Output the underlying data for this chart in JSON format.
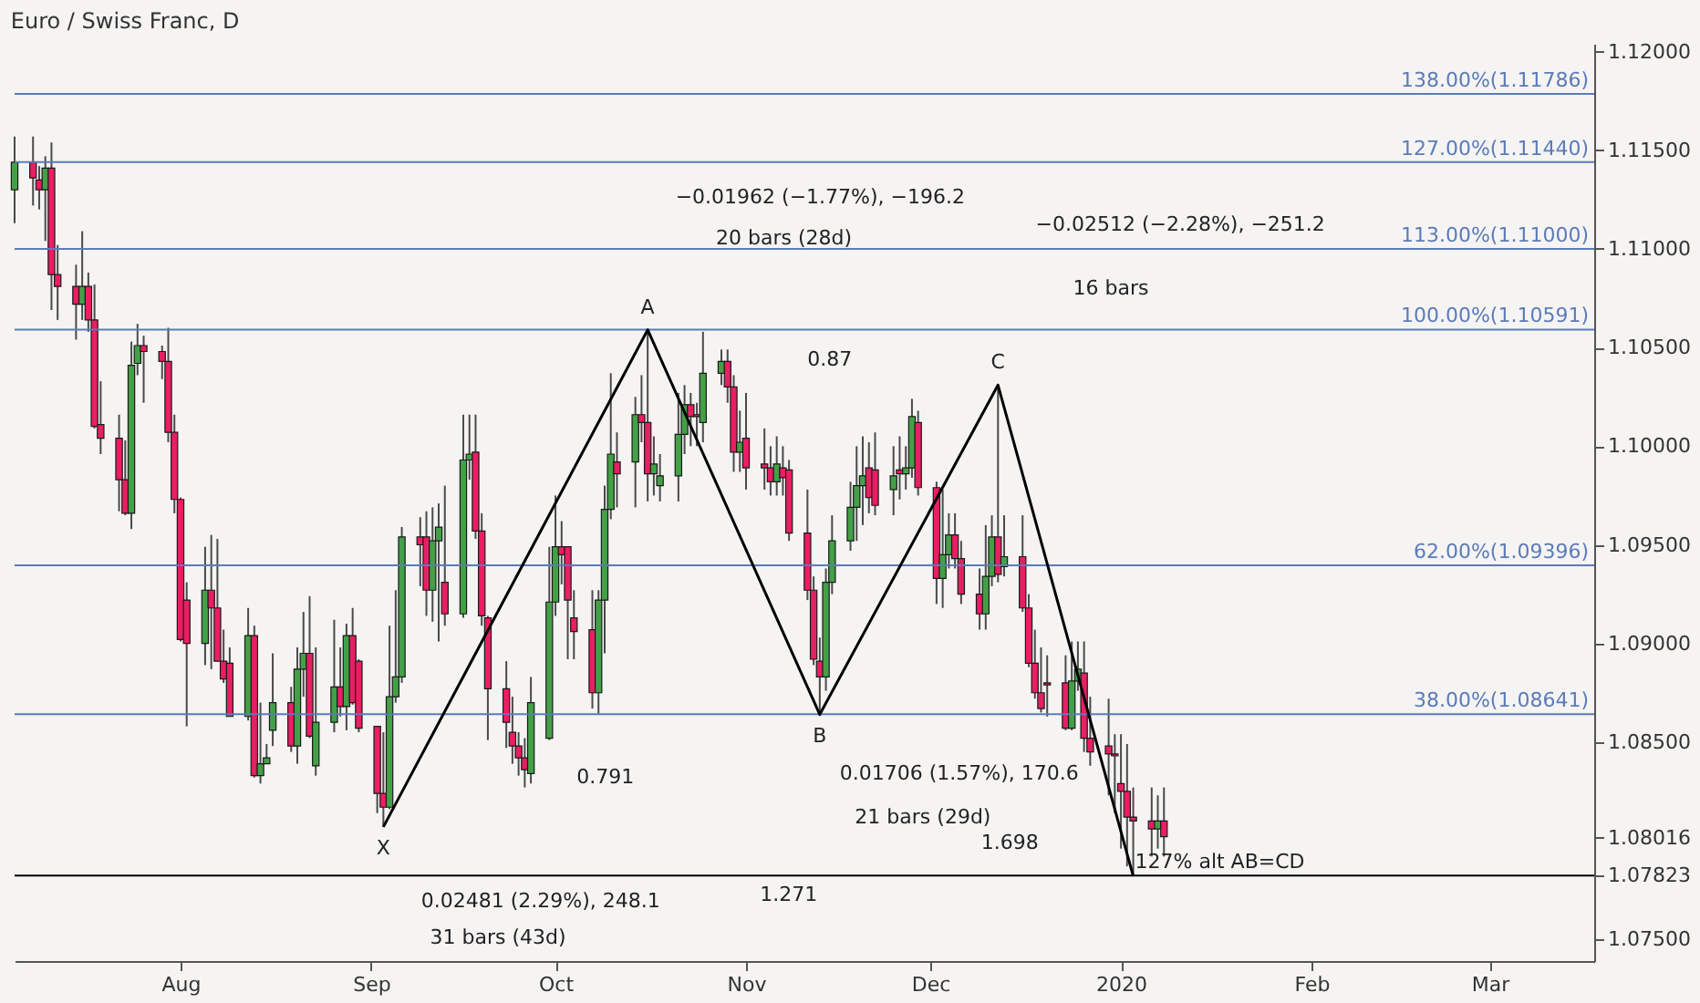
{
  "chart_data": {
    "type": "candlestick",
    "title": "Euro / Swiss Franc, D",
    "x": [
      "2019-07-05",
      "2019-07-08",
      "2019-07-09",
      "2019-07-10",
      "2019-07-11",
      "2019-07-12",
      "2019-07-15",
      "2019-07-16",
      "2019-07-17",
      "2019-07-18",
      "2019-07-19",
      "2019-07-22",
      "2019-07-23",
      "2019-07-24",
      "2019-07-25",
      "2019-07-26",
      "2019-07-29",
      "2019-07-30",
      "2019-07-31",
      "2019-08-01",
      "2019-08-02",
      "2019-08-05",
      "2019-08-06",
      "2019-08-07",
      "2019-08-08",
      "2019-08-09",
      "2019-08-12",
      "2019-08-13",
      "2019-08-14",
      "2019-08-15",
      "2019-08-16",
      "2019-08-19",
      "2019-08-20",
      "2019-08-21",
      "2019-08-22",
      "2019-08-23",
      "2019-08-26",
      "2019-08-27",
      "2019-08-28",
      "2019-08-29",
      "2019-08-30",
      "2019-09-02",
      "2019-09-03",
      "2019-09-04",
      "2019-09-05",
      "2019-09-06",
      "2019-09-09",
      "2019-09-10",
      "2019-09-11",
      "2019-09-12",
      "2019-09-13",
      "2019-09-16",
      "2019-09-17",
      "2019-09-18",
      "2019-09-19",
      "2019-09-20",
      "2019-09-23",
      "2019-09-24",
      "2019-09-25",
      "2019-09-26",
      "2019-09-27",
      "2019-09-30",
      "2019-10-01",
      "2019-10-02",
      "2019-10-03",
      "2019-10-04",
      "2019-10-07",
      "2019-10-08",
      "2019-10-09",
      "2019-10-10",
      "2019-10-11",
      "2019-10-14",
      "2019-10-15",
      "2019-10-16",
      "2019-10-17",
      "2019-10-18",
      "2019-10-21",
      "2019-10-22",
      "2019-10-23",
      "2019-10-24",
      "2019-10-25",
      "2019-10-28",
      "2019-10-29",
      "2019-10-30",
      "2019-10-31",
      "2019-11-01",
      "2019-11-04",
      "2019-11-05",
      "2019-11-06",
      "2019-11-07",
      "2019-11-08",
      "2019-11-11",
      "2019-11-12",
      "2019-11-13",
      "2019-11-14",
      "2019-11-15",
      "2019-11-18",
      "2019-11-19",
      "2019-11-20",
      "2019-11-21",
      "2019-11-22",
      "2019-11-25",
      "2019-11-26",
      "2019-11-27",
      "2019-11-28",
      "2019-11-29",
      "2019-12-02",
      "2019-12-03",
      "2019-12-04",
      "2019-12-05",
      "2019-12-06",
      "2019-12-09",
      "2019-12-10",
      "2019-12-11",
      "2019-12-12",
      "2019-12-13",
      "2019-12-16",
      "2019-12-17",
      "2019-12-18",
      "2019-12-19",
      "2019-12-20",
      "2019-12-23",
      "2019-12-24",
      "2019-12-25",
      "2019-12-26",
      "2019-12-27",
      "2019-12-30",
      "2019-12-31",
      "2020-01-01",
      "2020-01-02",
      "2020-01-03",
      "2020-01-06",
      "2020-01-07",
      "2020-01-08"
    ],
    "ohlc": [
      [
        1.113,
        1.1157,
        1.1113,
        1.1144
      ],
      [
        1.1144,
        1.1157,
        1.1122,
        1.1136
      ],
      [
        1.1135,
        1.1142,
        1.112,
        1.113
      ],
      [
        1.113,
        1.1147,
        1.1104,
        1.1141
      ],
      [
        1.1141,
        1.1154,
        1.1069,
        1.1087
      ],
      [
        1.1087,
        1.1102,
        1.1064,
        1.1081
      ],
      [
        1.1081,
        1.1092,
        1.1054,
        1.1072
      ],
      [
        1.1072,
        1.1109,
        1.1064,
        1.1081
      ],
      [
        1.1081,
        1.1088,
        1.1058,
        1.1064
      ],
      [
        1.1064,
        1.1082,
        1.1009,
        1.101
      ],
      [
        1.1011,
        1.1033,
        1.0996,
        1.1004
      ],
      [
        1.1004,
        1.1016,
        1.0967,
        1.0983
      ],
      [
        1.0983,
        1.1003,
        1.0965,
        1.0966
      ],
      [
        1.0966,
        1.1053,
        1.0958,
        1.1041
      ],
      [
        1.1042,
        1.1062,
        1.1036,
        1.1051
      ],
      [
        1.1051,
        1.1056,
        1.1022,
        1.1048
      ],
      [
        1.1048,
        1.1051,
        1.1034,
        1.1043
      ],
      [
        1.1043,
        1.106,
        1.1002,
        1.1007
      ],
      [
        1.1007,
        1.1016,
        1.0966,
        1.0973
      ],
      [
        1.0973,
        1.0974,
        1.0901,
        1.0902
      ],
      [
        1.0922,
        1.0931,
        1.0858,
        1.09
      ],
      [
        1.09,
        1.0949,
        1.0889,
        1.0927
      ],
      [
        1.0927,
        1.0955,
        1.0887,
        1.0918
      ],
      [
        1.0918,
        1.0953,
        1.0891,
        1.0891
      ],
      [
        1.0891,
        1.0907,
        1.088,
        1.0882
      ],
      [
        1.089,
        1.0898,
        1.0863,
        1.0863
      ],
      [
        1.0863,
        1.0918,
        1.0861,
        1.0904
      ],
      [
        1.0904,
        1.0909,
        1.0832,
        1.0833
      ],
      [
        1.0833,
        1.087,
        1.0829,
        1.0839
      ],
      [
        1.0839,
        1.0849,
        1.0839,
        1.0842
      ],
      [
        1.0856,
        1.0895,
        1.0848,
        1.087
      ],
      [
        1.087,
        1.0878,
        1.0845,
        1.0848
      ],
      [
        1.0848,
        1.0898,
        1.0839,
        1.0887
      ],
      [
        1.0887,
        1.0916,
        1.0873,
        1.0895
      ],
      [
        1.0895,
        1.0924,
        1.0852,
        1.0853
      ],
      [
        1.0838,
        1.0898,
        1.0833,
        1.086
      ],
      [
        1.086,
        1.0912,
        1.0855,
        1.0878
      ],
      [
        1.0878,
        1.0898,
        1.0863,
        1.0868
      ],
      [
        1.0868,
        1.091,
        1.0856,
        1.0904
      ],
      [
        1.0904,
        1.0918,
        1.0869,
        1.087
      ],
      [
        1.0891,
        1.0892,
        1.0855,
        1.0857
      ],
      [
        1.0858,
        1.0858,
        1.0814,
        1.0824
      ],
      [
        1.0824,
        1.0855,
        1.0807,
        1.0817
      ],
      [
        1.0817,
        1.0909,
        1.0816,
        1.0873
      ],
      [
        1.0873,
        1.0927,
        1.087,
        1.0883
      ],
      [
        1.0883,
        1.0959,
        1.088,
        1.0954
      ],
      [
        1.0954,
        1.0964,
        1.0929,
        1.095
      ],
      [
        1.0954,
        1.0967,
        1.0914,
        1.0927
      ],
      [
        1.0927,
        1.0969,
        1.0911,
        1.0952
      ],
      [
        1.0952,
        1.0971,
        1.0901,
        1.0959
      ],
      [
        1.0931,
        1.098,
        1.0909,
        1.0915
      ],
      [
        1.0915,
        1.1016,
        1.0913,
        1.0993
      ],
      [
        1.0993,
        1.1016,
        1.0983,
        1.0996
      ],
      [
        1.0997,
        1.1016,
        1.0953,
        1.0957
      ],
      [
        1.0957,
        1.0966,
        1.0909,
        1.0914
      ],
      [
        1.0913,
        1.0914,
        1.0851,
        1.0877
      ],
      [
        1.0877,
        1.0891,
        1.0847,
        1.086
      ],
      [
        1.0855,
        1.0873,
        1.0839,
        1.0848
      ],
      [
        1.0848,
        1.0855,
        1.0833,
        1.0842
      ],
      [
        1.0842,
        1.0852,
        1.0827,
        1.0836
      ],
      [
        1.0834,
        1.0883,
        1.0829,
        1.087
      ],
      [
        1.0852,
        1.0949,
        1.0851,
        1.0921
      ],
      [
        1.0921,
        1.0975,
        1.0914,
        1.0949
      ],
      [
        1.0949,
        1.0962,
        1.093,
        1.0945
      ],
      [
        1.0949,
        1.0949,
        1.0892,
        1.0922
      ],
      [
        1.0913,
        1.0927,
        1.0892,
        1.0906
      ],
      [
        1.0907,
        1.0927,
        1.0867,
        1.0875
      ],
      [
        1.0875,
        1.0927,
        1.0864,
        1.0922
      ],
      [
        1.0922,
        1.098,
        1.0895,
        1.0968
      ],
      [
        1.0968,
        1.1037,
        1.0963,
        1.0996
      ],
      [
        1.0992,
        1.1007,
        1.0969,
        1.0986
      ],
      [
        1.0992,
        1.1025,
        1.0969,
        1.1016
      ],
      [
        1.1016,
        1.1036,
        1.1002,
        1.1012
      ],
      [
        1.1012,
        1.1059,
        1.0972,
        1.0986
      ],
      [
        1.0986,
        1.1005,
        1.0975,
        1.0991
      ],
      [
        1.098,
        1.0996,
        1.0972,
        1.0985
      ],
      [
        1.0985,
        1.1027,
        1.0972,
        1.1006
      ],
      [
        1.1006,
        1.1031,
        1.0996,
        1.1021
      ],
      [
        1.1021,
        1.1027,
        1.1,
        1.1015
      ],
      [
        1.1016,
        1.1022,
        1.1,
        1.1015
      ],
      [
        1.1012,
        1.1058,
        1.1002,
        1.1037
      ],
      [
        1.1037,
        1.1049,
        1.1031,
        1.1043
      ],
      [
        1.1043,
        1.1049,
        1.1022,
        1.103
      ],
      [
        1.103,
        1.1036,
        1.0987,
        1.0997
      ],
      [
        1.0997,
        1.1018,
        1.0987,
        1.1002
      ],
      [
        1.1004,
        1.1027,
        1.0978,
        1.0989
      ],
      [
        1.0991,
        1.1009,
        1.0978,
        1.0989
      ],
      [
        1.0989,
        1.1,
        1.0975,
        1.0982
      ],
      [
        1.0982,
        1.1005,
        1.0975,
        1.0991
      ],
      [
        1.0989,
        1.1,
        1.0975,
        1.0984
      ],
      [
        1.0988,
        1.0993,
        1.0952,
        1.0956
      ],
      [
        1.0956,
        1.0978,
        1.0922,
        1.0927
      ],
      [
        1.0927,
        1.0934,
        1.0889,
        1.0892
      ],
      [
        1.0891,
        1.0903,
        1.0864,
        1.0883
      ],
      [
        1.0883,
        1.0938,
        1.0876,
        1.0931
      ],
      [
        1.0931,
        1.0965,
        1.0925,
        1.0952
      ],
      [
        1.0952,
        1.0982,
        1.0947,
        1.0969
      ],
      [
        1.0969,
        1.1,
        1.0952,
        1.098
      ],
      [
        1.098,
        1.1005,
        1.096,
        1.0985
      ],
      [
        1.0989,
        1.1002,
        1.0966,
        1.0974
      ],
      [
        1.0988,
        1.1007,
        1.0965,
        1.097
      ],
      [
        1.0978,
        1.1,
        1.0965,
        1.0985
      ],
      [
        1.0988,
        1.1005,
        1.0973,
        1.0986
      ],
      [
        1.0986,
        1.1,
        1.0978,
        1.0989
      ],
      [
        1.0989,
        1.1024,
        1.0984,
        1.1015
      ],
      [
        1.1012,
        1.1018,
        1.0975,
        1.0979
      ],
      [
        1.0979,
        1.0982,
        1.092,
        1.0933
      ],
      [
        1.0933,
        1.0978,
        1.0918,
        1.0945
      ],
      [
        1.0945,
        1.0966,
        1.0938,
        1.0955
      ],
      [
        1.0955,
        1.0966,
        1.0938,
        1.0943
      ],
      [
        1.0943,
        1.0952,
        1.092,
        1.0925
      ],
      [
        1.0925,
        1.0938,
        1.0907,
        1.0915
      ],
      [
        1.0915,
        1.096,
        1.0907,
        1.0934
      ],
      [
        1.0934,
        1.0965,
        1.0929,
        1.0954
      ],
      [
        1.0954,
        1.1031,
        1.0931,
        1.0935
      ],
      [
        1.0939,
        1.0965,
        1.0934,
        1.0944
      ],
      [
        1.0944,
        1.0965,
        1.0916,
        1.0918
      ],
      [
        1.0918,
        1.0925,
        1.0888,
        1.089
      ],
      [
        1.089,
        1.0907,
        1.0872,
        1.0875
      ],
      [
        1.0875,
        1.0898,
        1.0865,
        1.0867
      ],
      [
        1.088,
        1.0894,
        1.0863,
        1.0879
      ],
      [
        1.088,
        1.0894,
        1.0856,
        1.0857
      ],
      [
        1.0857,
        1.0901,
        1.0856,
        1.0881
      ],
      [
        1.0881,
        1.0901,
        1.0876,
        1.0887
      ],
      [
        1.0885,
        1.0901,
        1.0845,
        1.0852
      ],
      [
        1.0852,
        1.0873,
        1.0838,
        1.0845
      ],
      [
        1.0848,
        1.0872,
        1.0823,
        1.0844
      ],
      [
        1.0844,
        1.0854,
        1.0814,
        1.0843
      ],
      [
        1.0829,
        1.0854,
        1.0796,
        1.0825
      ],
      [
        1.0825,
        1.0849,
        1.0787,
        1.0812
      ],
      [
        1.0812,
        1.0827,
        1.0783,
        1.081
      ],
      [
        1.081,
        1.0827,
        1.0792,
        1.0806
      ],
      [
        1.0806,
        1.0823,
        1.0796,
        1.081
      ],
      [
        1.081,
        1.0827,
        1.0792,
        1.0802
      ]
    ],
    "colors": [
      "#43a047",
      "#e91e63",
      "#e91e63",
      "#43a047",
      "#e91e63",
      "#e91e63",
      "#e91e63",
      "#43a047",
      "#e91e63",
      "#e91e63",
      "#e91e63",
      "#e91e63",
      "#e91e63",
      "#43a047",
      "#43a047",
      "#e91e63",
      "#e91e63",
      "#e91e63",
      "#e91e63",
      "#e91e63",
      "#e91e63",
      "#43a047",
      "#e91e63",
      "#e91e63",
      "#e91e63",
      "#e91e63",
      "#43a047",
      "#e91e63",
      "#43a047",
      "#43a047",
      "#43a047",
      "#e91e63",
      "#43a047",
      "#43a047",
      "#e91e63",
      "#43a047",
      "#43a047",
      "#e91e63",
      "#43a047",
      "#e91e63",
      "#e91e63",
      "#e91e63",
      "#e91e63",
      "#43a047",
      "#43a047",
      "#43a047",
      "#e91e63",
      "#e91e63",
      "#43a047",
      "#43a047",
      "#e91e63",
      "#43a047",
      "#43a047",
      "#e91e63",
      "#e91e63",
      "#e91e63",
      "#e91e63",
      "#e91e63",
      "#e91e63",
      "#e91e63",
      "#43a047",
      "#43a047",
      "#43a047",
      "#e91e63",
      "#e91e63",
      "#e91e63",
      "#e91e63",
      "#43a047",
      "#43a047",
      "#43a047",
      "#e91e63",
      "#43a047",
      "#e91e63",
      "#e91e63",
      "#43a047",
      "#43a047",
      "#43a047",
      "#43a047",
      "#e91e63",
      "#e91e63",
      "#43a047",
      "#43a047",
      "#e91e63",
      "#e91e63",
      "#43a047",
      "#e91e63",
      "#e91e63",
      "#e91e63",
      "#43a047",
      "#e91e63",
      "#e91e63",
      "#e91e63",
      "#e91e63",
      "#e91e63",
      "#43a047",
      "#43a047",
      "#43a047",
      "#43a047",
      "#43a047",
      "#e91e63",
      "#e91e63",
      "#43a047",
      "#e91e63",
      "#43a047",
      "#43a047",
      "#e91e63",
      "#e91e63",
      "#43a047",
      "#43a047",
      "#e91e63",
      "#e91e63",
      "#e91e63",
      "#43a047",
      "#43a047",
      "#e91e63",
      "#43a047",
      "#e91e63",
      "#e91e63",
      "#e91e63",
      "#e91e63",
      "#e91e63",
      "#e91e63",
      "#43a047",
      "#43a047",
      "#e91e63",
      "#e91e63",
      "#e91e63",
      "#e91e63",
      "#e91e63",
      "#e91e63",
      "#e91e63",
      "#e91e63",
      "#43a047",
      "#e91e63"
    ],
    "xlim": [
      "2019-07-05",
      "2020-03-18"
    ],
    "xticks": [
      {
        "value": "2019-08-01",
        "label": "Aug"
      },
      {
        "value": "2019-09-01",
        "label": "Sep"
      },
      {
        "value": "2019-10-01",
        "label": "Oct"
      },
      {
        "value": "2019-11-01",
        "label": "Nov"
      },
      {
        "value": "2019-12-01",
        "label": "Dec"
      },
      {
        "value": "2020-01-01",
        "label": "2020"
      },
      {
        "value": "2020-02-01",
        "label": "Feb"
      },
      {
        "value": "2020-03-01",
        "label": "Mar"
      }
    ],
    "ylim": [
      1.0739,
      1.1204
    ],
    "yticks": [
      {
        "value": 1.075,
        "label": "1.07500"
      },
      {
        "value": 1.07823,
        "label": "1.07823"
      },
      {
        "value": 1.08016,
        "label": "1.08016"
      },
      {
        "value": 1.085,
        "label": "1.08500"
      },
      {
        "value": 1.09,
        "label": "1.09000"
      },
      {
        "value": 1.095,
        "label": "1.09500"
      },
      {
        "value": 1.1,
        "label": "1.10000"
      },
      {
        "value": 1.105,
        "label": "1.10500"
      },
      {
        "value": 1.11,
        "label": "1.11000"
      },
      {
        "value": 1.115,
        "label": "1.11500"
      },
      {
        "value": 1.12,
        "label": "1.12000"
      }
    ],
    "ref_lines": [
      {
        "axis": "y",
        "value": 1.11786,
        "label": "138.00%(1.11786)",
        "color": "#5b7bb8"
      },
      {
        "axis": "y",
        "value": 1.1144,
        "label": "127.00%(1.11440)",
        "color": "#5b7bb8"
      },
      {
        "axis": "y",
        "value": 1.11,
        "label": "113.00%(1.11000)",
        "color": "#5b7bb8"
      },
      {
        "axis": "y",
        "value": 1.10591,
        "label": "100.00%(1.10591)",
        "color": "#5b7bb8"
      },
      {
        "axis": "y",
        "value": 1.09396,
        "label": "62.00%(1.09396)",
        "color": "#5b7bb8"
      },
      {
        "axis": "y",
        "value": 1.08641,
        "label": "38.00%(1.08641)",
        "color": "#5b7bb8"
      },
      {
        "axis": "y",
        "value": 1.07823,
        "color": "#000000"
      }
    ],
    "series": [
      {
        "type": "line",
        "x": [
          "2019-09-03",
          "2019-10-16",
          "2019-11-13",
          "2019-12-12",
          "2020-01-03"
        ],
        "values": [
          1.0807,
          1.1059,
          1.0864,
          1.1031,
          1.0782
        ],
        "color": "#000000"
      }
    ],
    "annotations": [
      {
        "text": "X",
        "x": "2019-09-03",
        "y": 1.0807
      },
      {
        "text": "A",
        "x": "2019-10-16",
        "y": 1.1059
      },
      {
        "text": "B",
        "x": "2019-11-13",
        "y": 1.0864
      },
      {
        "text": "C",
        "x": "2019-12-12",
        "y": 1.1031
      },
      "0.791",
      "0.87",
      "1.271",
      "1.698",
      "−0.01962 (−1.77%), −196.2",
      "20 bars (28d)",
      "−0.02512 (−2.28%), −251.2",
      "16 bars",
      "0.01706 (1.57%), 170.6",
      "21 bars (29d)",
      "0.02481 (2.29%), 248.1",
      "31 bars (43d)",
      "127% alt AB=CD"
    ]
  }
}
